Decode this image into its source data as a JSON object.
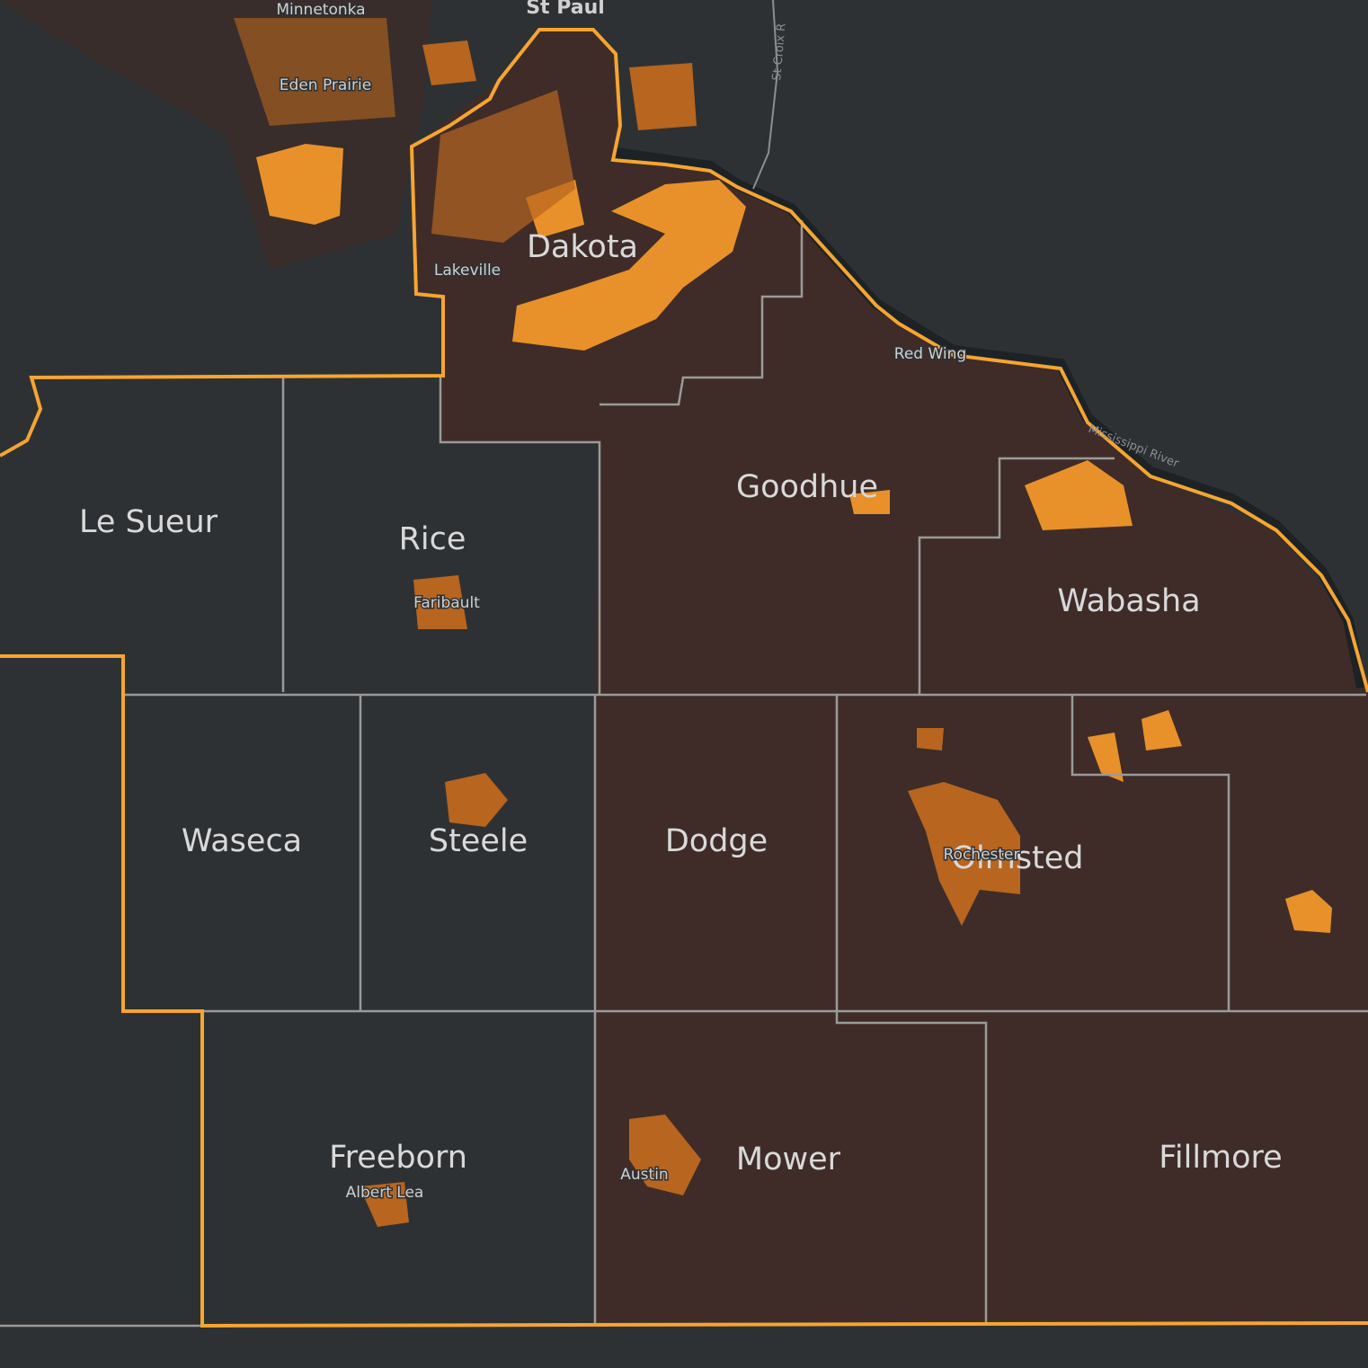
{
  "map": {
    "counties": [
      "Dakota",
      "Le Sueur",
      "Rice",
      "Goodhue",
      "Wabasha",
      "Waseca",
      "Steele",
      "Dodge",
      "Olmsted",
      "Freeborn",
      "Mower",
      "Fillmore"
    ],
    "cities": [
      "St Paul",
      "Minnetonka",
      "Eden Prairie",
      "Lakeville",
      "Red Wing",
      "Faribault",
      "Rochester",
      "Albert Lea",
      "Austin"
    ],
    "rivers": [
      "Mississippi River",
      "St Croix R"
    ]
  }
}
